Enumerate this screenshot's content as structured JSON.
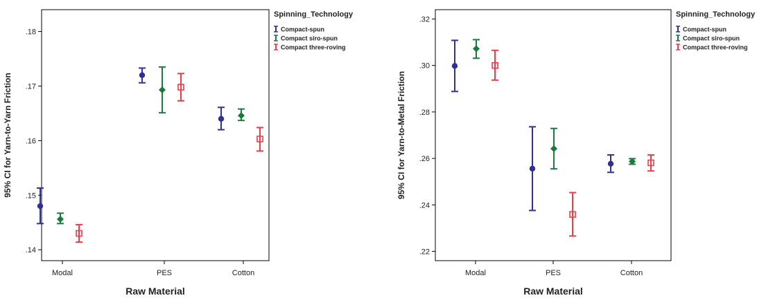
{
  "chart_data": [
    {
      "type": "errorbar",
      "xlabel": "Raw Material",
      "ylabel": "95% CI for Yarn-to-Yarn Friction",
      "categories": [
        "Modal",
        "PES",
        "Cotton"
      ],
      "ylim": [
        0.138,
        0.184
      ],
      "yticks": [
        0.14,
        0.15,
        0.16,
        0.17,
        0.18
      ],
      "ytick_labels": [
        ".14",
        ".15",
        ".16",
        ".17",
        ".18"
      ],
      "grid": false,
      "legend": {
        "title": "Spinning_Technology",
        "position": "top-right outside"
      },
      "series": [
        {
          "name": "Compact-spun",
          "color": "#2e3192",
          "marker": "circle",
          "values": [
            0.148,
            0.172,
            0.164
          ],
          "lower": [
            0.1448,
            0.1706,
            0.162
          ],
          "upper": [
            0.1513,
            0.1733,
            0.1661
          ]
        },
        {
          "name": "Compact siro-spun",
          "color": "#1a7a3c",
          "marker": "diamond",
          "values": [
            0.1456,
            0.1693,
            0.1646
          ],
          "lower": [
            0.1448,
            0.1651,
            0.1637
          ],
          "upper": [
            0.1467,
            0.1735,
            0.1658
          ]
        },
        {
          "name": "Compact three-roving",
          "color": "#ee3b45",
          "marker": "square",
          "values": [
            0.143,
            0.1698,
            0.1603
          ],
          "lower": [
            0.1414,
            0.1673,
            0.1581
          ],
          "upper": [
            0.1446,
            0.1723,
            0.1624
          ]
        }
      ]
    },
    {
      "type": "errorbar",
      "xlabel": "Raw Material",
      "ylabel": "95% CI for Yarn-to-Metal Friction",
      "categories": [
        "Modal",
        "PES",
        "Cotton"
      ],
      "ylim": [
        0.216,
        0.324
      ],
      "yticks": [
        0.22,
        0.24,
        0.26,
        0.28,
        0.3,
        0.32
      ],
      "ytick_labels": [
        ".22",
        ".24",
        ".26",
        ".28",
        ".30",
        ".32"
      ],
      "grid": false,
      "legend": {
        "title": "Spinning_Technology",
        "position": "top-right inside"
      },
      "series": [
        {
          "name": "Compact-spun",
          "color": "#2e3192",
          "marker": "circle",
          "values": [
            0.2998,
            0.2556,
            0.2577
          ],
          "lower": [
            0.2888,
            0.2376,
            0.254
          ],
          "upper": [
            0.3108,
            0.2736,
            0.2615
          ]
        },
        {
          "name": "Compact siro-spun",
          "color": "#1a7a3c",
          "marker": "diamond",
          "values": [
            0.3072,
            0.2642,
            0.2587
          ],
          "lower": [
            0.3031,
            0.2555,
            0.2575
          ],
          "upper": [
            0.3111,
            0.2729,
            0.2599
          ]
        },
        {
          "name": "Compact three-roving",
          "color": "#ee3b45",
          "marker": "square",
          "values": [
            0.3,
            0.2359,
            0.2581
          ],
          "lower": [
            0.2937,
            0.2266,
            0.2546
          ],
          "upper": [
            0.3065,
            0.2453,
            0.2615
          ]
        }
      ]
    }
  ]
}
